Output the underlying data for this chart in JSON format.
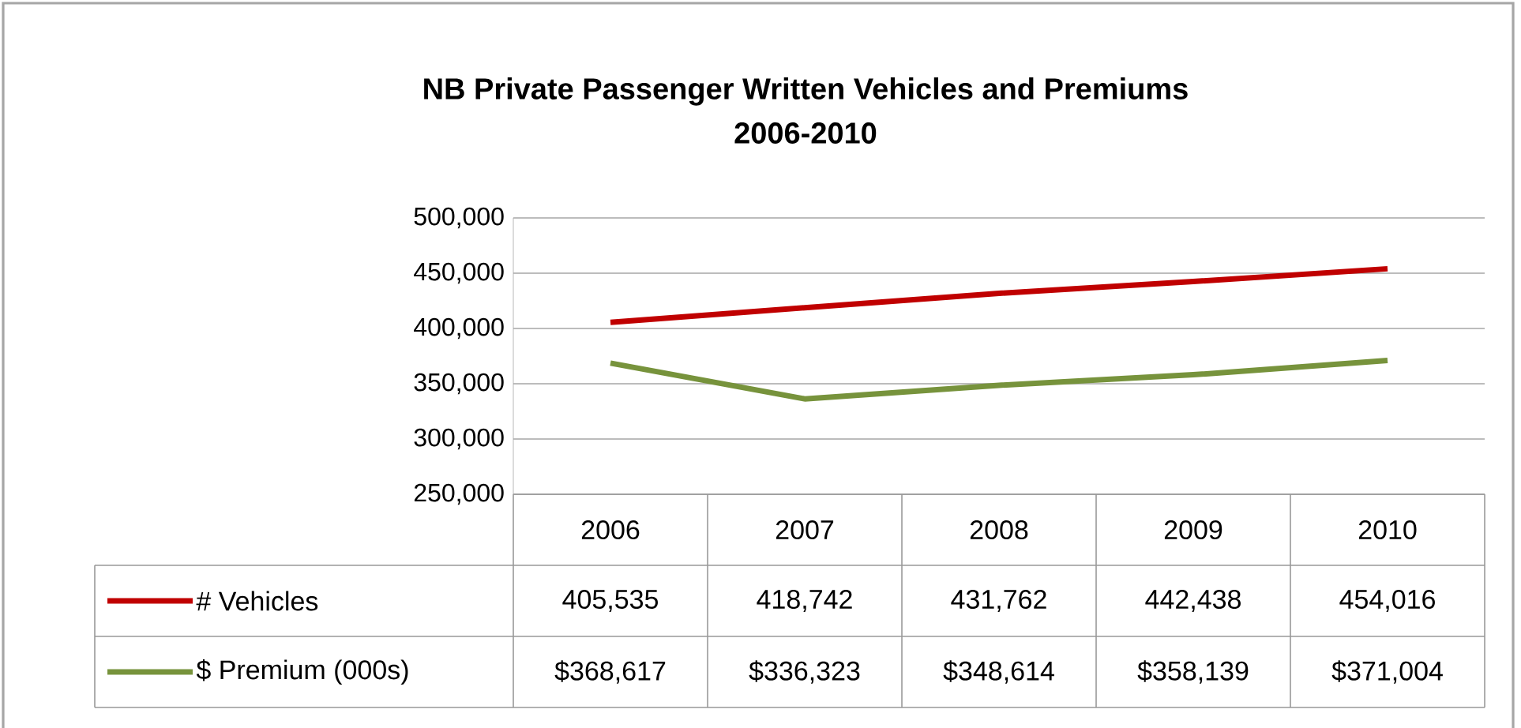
{
  "chart_data": {
    "type": "line",
    "title": "NB Private Passenger  Written Vehicles and Premiums\n2006-2010",
    "categories": [
      "2006",
      "2007",
      "2008",
      "2009",
      "2010"
    ],
    "series": [
      {
        "name": "# Vehicles",
        "color": "#c00000",
        "values": [
          405535,
          418742,
          431762,
          442438,
          454016
        ],
        "value_labels": [
          "405,535",
          "418,742",
          "431,762",
          "442,438",
          "454,016"
        ]
      },
      {
        "name": "$ Premium (000s)",
        "color": "#77933c",
        "values": [
          368617,
          336323,
          348614,
          358139,
          371004
        ],
        "value_labels": [
          "$368,617",
          "$336,323",
          "$348,614",
          "$358,139",
          "$371,004"
        ]
      }
    ],
    "ylim": [
      250000,
      500000
    ],
    "yticks": [
      {
        "value": 250000,
        "label": "250,000"
      },
      {
        "value": 300000,
        "label": "300,000"
      },
      {
        "value": 350000,
        "label": "350,000"
      },
      {
        "value": 400000,
        "label": "400,000"
      },
      {
        "value": 450000,
        "label": "450,000"
      },
      {
        "value": 500000,
        "label": "500,000"
      }
    ],
    "grid": "y",
    "legend": "bottom",
    "marker": "none",
    "line_style": "solid"
  }
}
